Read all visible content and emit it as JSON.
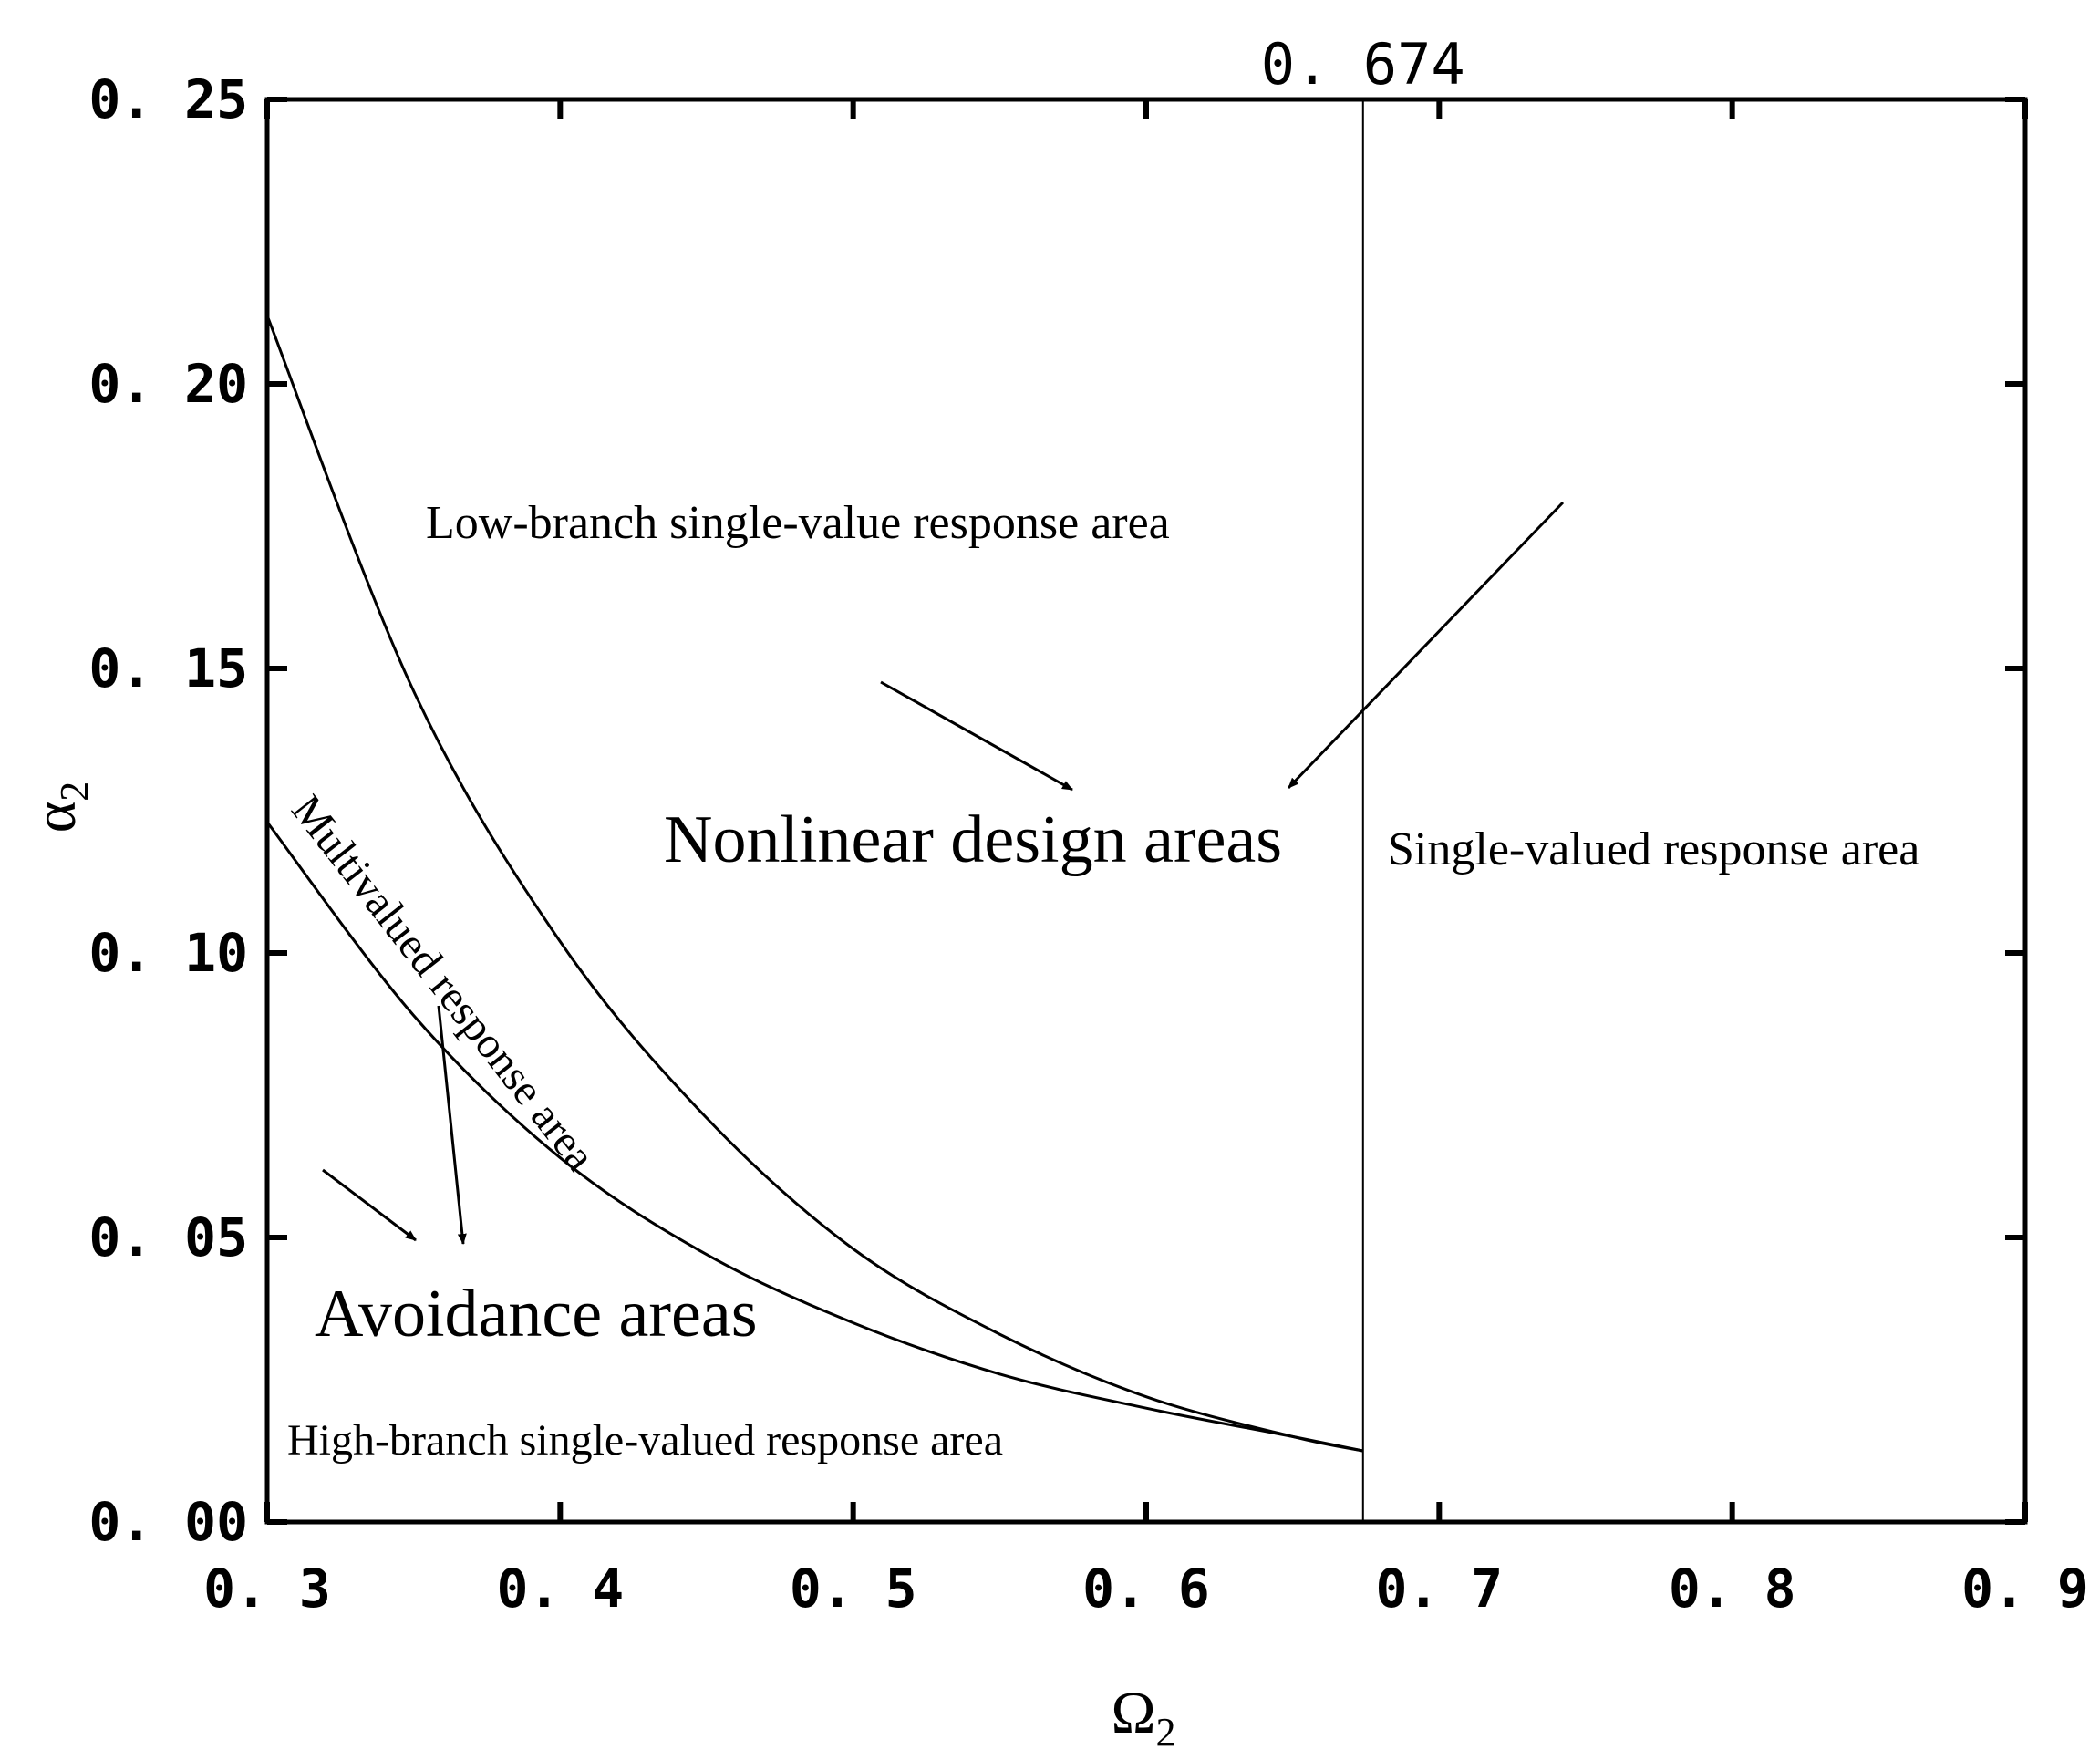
{
  "chart_data": {
    "type": "line",
    "xlabel": "Ω",
    "xlabel_sub": "2",
    "ylabel": "α",
    "ylabel_sub": "2",
    "xlim": [
      0.3,
      0.9
    ],
    "ylim": [
      0.0,
      0.25
    ],
    "x_ticks": [
      {
        "value": 0.3,
        "label": "0. 3"
      },
      {
        "value": 0.4,
        "label": "0. 4"
      },
      {
        "value": 0.5,
        "label": "0. 5"
      },
      {
        "value": 0.6,
        "label": "0. 6"
      },
      {
        "value": 0.7,
        "label": "0. 7"
      },
      {
        "value": 0.8,
        "label": "0. 8"
      },
      {
        "value": 0.9,
        "label": "0. 9"
      }
    ],
    "y_ticks": [
      {
        "value": 0.0,
        "label": "0. 00"
      },
      {
        "value": 0.05,
        "label": "0. 05"
      },
      {
        "value": 0.1,
        "label": "0. 10"
      },
      {
        "value": 0.15,
        "label": "0. 15"
      },
      {
        "value": 0.2,
        "label": "0. 20"
      },
      {
        "value": 0.25,
        "label": "0. 25"
      }
    ],
    "grid": false,
    "series": [
      {
        "style": "solid",
        "x": [
          0.3,
          0.35,
          0.4,
          0.45,
          0.5,
          0.55,
          0.6,
          0.65,
          0.674
        ],
        "y": [
          0.212,
          0.146,
          0.102,
          0.071,
          0.048,
          0.033,
          0.022,
          0.015,
          0.0125
        ]
      },
      {
        "style": "solid",
        "x": [
          0.3,
          0.35,
          0.4,
          0.45,
          0.5,
          0.55,
          0.6,
          0.65,
          0.674
        ],
        "y": [
          0.123,
          0.089,
          0.064,
          0.047,
          0.035,
          0.026,
          0.02,
          0.015,
          0.0125
        ]
      }
    ],
    "vertical_line": {
      "x": 0.674,
      "label": "0. 674"
    },
    "annotations": [
      {
        "id": "low-branch",
        "text": "Low-branch single-value response area"
      },
      {
        "id": "nonlinear",
        "text": "Nonlinear design areas"
      },
      {
        "id": "single-valued",
        "text": "Single-valued response area"
      },
      {
        "id": "multivalued",
        "text": "Multivalued response area"
      },
      {
        "id": "avoidance",
        "text": "Avoidance areas"
      },
      {
        "id": "high-branch",
        "text": "High-branch single-valued response area"
      }
    ]
  }
}
